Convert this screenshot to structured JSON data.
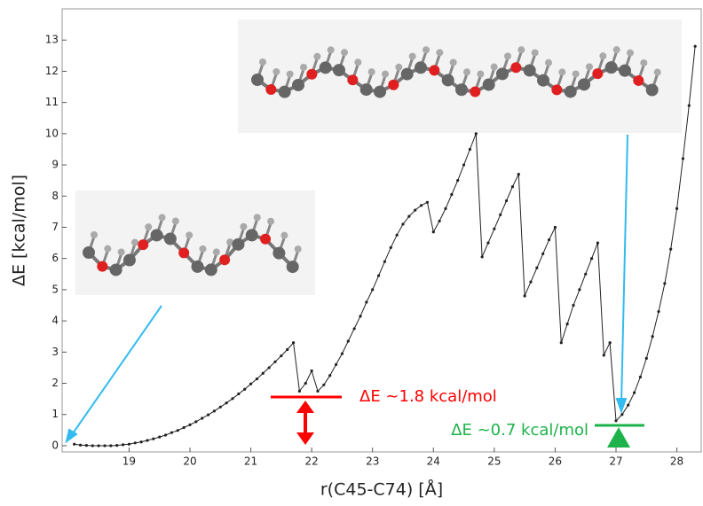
{
  "chart_data": {
    "type": "line",
    "xlabel": "r(C45-C74) [Å]",
    "ylabel": "ΔE [kcal/mol]",
    "annotations": [
      "ΔE ~1.8 kcal/mol",
      "ΔE ~0.7 kcal/mol"
    ],
    "annotation_colors": [
      "#ff0000",
      "#1db34a"
    ],
    "color": "#222222",
    "xlim": [
      17.9,
      28.4
    ],
    "ylim": [
      -0.2,
      14
    ],
    "xticks": [
      19,
      20,
      21,
      22,
      23,
      24,
      25,
      26,
      27,
      28
    ],
    "yticks": [
      0,
      1,
      2,
      3,
      4,
      5,
      6,
      7,
      8,
      9,
      10,
      11,
      12,
      13
    ],
    "x": [
      18.1,
      18.2,
      18.3,
      18.4,
      18.5,
      18.6,
      18.7,
      18.8,
      18.9,
      19.0,
      19.1,
      19.2,
      19.3,
      19.4,
      19.5,
      19.6,
      19.7,
      19.8,
      19.9,
      20.0,
      20.1,
      20.2,
      20.3,
      20.4,
      20.5,
      20.6,
      20.7,
      20.8,
      20.9,
      21.0,
      21.1,
      21.2,
      21.3,
      21.4,
      21.5,
      21.6,
      21.7,
      21.8,
      21.9,
      22.0,
      22.1,
      22.2,
      22.3,
      22.4,
      22.5,
      22.6,
      22.7,
      22.8,
      22.9,
      23.0,
      23.1,
      23.2,
      23.3,
      23.4,
      23.5,
      23.6,
      23.7,
      23.8,
      23.9,
      24.0,
      24.1,
      24.2,
      24.3,
      24.4,
      24.5,
      24.6,
      24.7,
      24.8,
      24.9,
      25.0,
      25.1,
      25.2,
      25.3,
      25.4,
      25.5,
      25.6,
      25.7,
      25.8,
      25.9,
      26.0,
      26.1,
      26.2,
      26.3,
      26.4,
      26.5,
      26.6,
      26.7,
      26.8,
      26.9,
      27.0,
      27.1,
      27.2,
      27.3,
      27.4,
      27.5,
      27.6,
      27.7,
      27.8,
      27.9,
      28.0,
      28.1,
      28.2,
      28.3
    ],
    "values": [
      0.05,
      0.02,
      0.01,
      0,
      0,
      0,
      0,
      0.01,
      0.03,
      0.05,
      0.09,
      0.12,
      0.17,
      0.22,
      0.28,
      0.34,
      0.42,
      0.49,
      0.58,
      0.67,
      0.77,
      0.88,
      0.99,
      1.11,
      1.24,
      1.37,
      1.51,
      1.66,
      1.81,
      1.98,
      2.14,
      2.32,
      2.5,
      2.69,
      2.88,
      3.08,
      3.3,
      1.75,
      2.0,
      2.4,
      1.75,
      1.95,
      2.25,
      2.6,
      2.95,
      3.35,
      3.75,
      4.15,
      4.6,
      5.0,
      5.45,
      5.9,
      6.35,
      6.75,
      7.1,
      7.35,
      7.55,
      7.7,
      7.8,
      6.85,
      7.2,
      7.6,
      8.05,
      8.5,
      9.0,
      9.5,
      10.0,
      6.05,
      6.5,
      6.95,
      7.4,
      7.85,
      8.3,
      8.7,
      4.8,
      5.25,
      5.7,
      6.15,
      6.6,
      7.0,
      3.3,
      3.9,
      4.5,
      5.0,
      5.5,
      6.0,
      6.5,
      2.9,
      3.3,
      0.8,
      1.0,
      1.3,
      1.7,
      2.2,
      2.8,
      3.5,
      4.3,
      5.2,
      6.3,
      7.6,
      9.2,
      10.9,
      12.8
    ]
  }
}
